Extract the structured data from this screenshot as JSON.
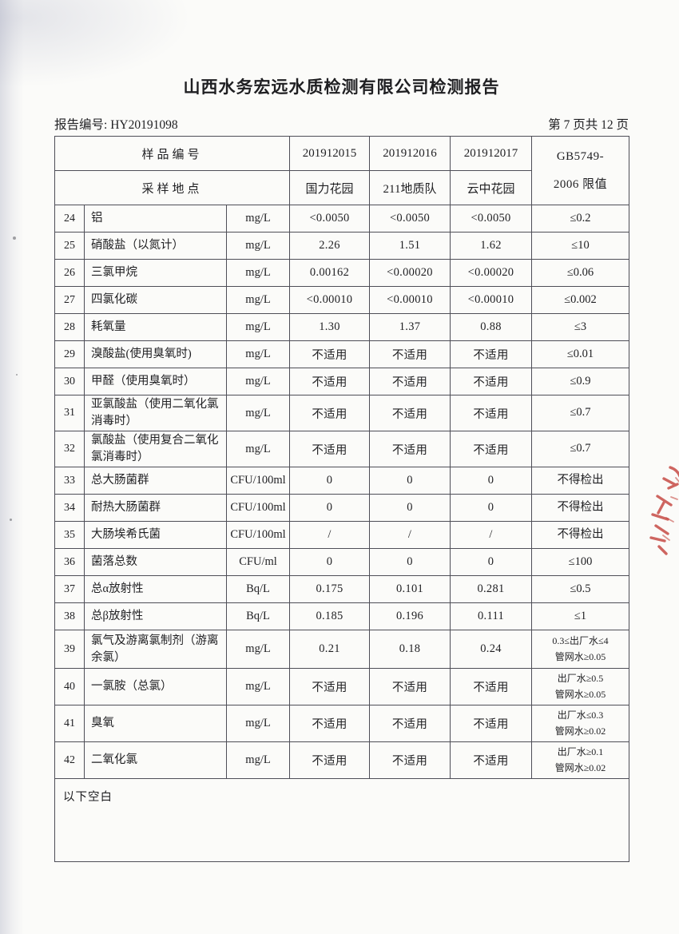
{
  "page": {
    "title": "山西水务宏远水质检测有限公司检测报告",
    "report_no_label": "报告编号:",
    "report_no": "HY20191098",
    "page_indicator": "第 7 页共 12 页"
  },
  "table": {
    "header": {
      "row1_label": "样品编号",
      "row2_label": "采样地点",
      "sample_ids": [
        "201912015",
        "201912016",
        "201912017"
      ],
      "locations": [
        "国力花园",
        "211地质队",
        "云中花园"
      ],
      "limit_label": "GB5749-\n2006 限值"
    },
    "rows": [
      {
        "no": "24",
        "name": "铝",
        "unit": "mg/L",
        "v1": "<0.0050",
        "v2": "<0.0050",
        "v3": "<0.0050",
        "limit": "≤0.2"
      },
      {
        "no": "25",
        "name": "硝酸盐（以氮计）",
        "unit": "mg/L",
        "v1": "2.26",
        "v2": "1.51",
        "v3": "1.62",
        "limit": "≤10"
      },
      {
        "no": "26",
        "name": "三氯甲烷",
        "unit": "mg/L",
        "v1": "0.00162",
        "v2": "<0.00020",
        "v3": "<0.00020",
        "limit": "≤0.06"
      },
      {
        "no": "27",
        "name": "四氯化碳",
        "unit": "mg/L",
        "v1": "<0.00010",
        "v2": "<0.00010",
        "v3": "<0.00010",
        "limit": "≤0.002"
      },
      {
        "no": "28",
        "name": "耗氧量",
        "unit": "mg/L",
        "v1": "1.30",
        "v2": "1.37",
        "v3": "0.88",
        "limit": "≤3"
      },
      {
        "no": "29",
        "name": "溴酸盐(使用臭氧时)",
        "unit": "mg/L",
        "v1": "不适用",
        "v2": "不适用",
        "v3": "不适用",
        "limit": "≤0.01"
      },
      {
        "no": "30",
        "name": "甲醛（使用臭氧时）",
        "unit": "mg/L",
        "v1": "不适用",
        "v2": "不适用",
        "v3": "不适用",
        "limit": "≤0.9"
      },
      {
        "no": "31",
        "name": "亚氯酸盐（使用二氧化氯消毒时）",
        "unit": "mg/L",
        "v1": "不适用",
        "v2": "不适用",
        "v3": "不适用",
        "limit": "≤0.7"
      },
      {
        "no": "32",
        "name": "氯酸盐（使用复合二氧化氯消毒时）",
        "unit": "mg/L",
        "v1": "不适用",
        "v2": "不适用",
        "v3": "不适用",
        "limit": "≤0.7"
      },
      {
        "no": "33",
        "name": "总大肠菌群",
        "unit": "CFU/100ml",
        "v1": "0",
        "v2": "0",
        "v3": "0",
        "limit": "不得检出"
      },
      {
        "no": "34",
        "name": "耐热大肠菌群",
        "unit": "CFU/100ml",
        "v1": "0",
        "v2": "0",
        "v3": "0",
        "limit": "不得检出"
      },
      {
        "no": "35",
        "name": "大肠埃希氏菌",
        "unit": "CFU/100ml",
        "v1": "/",
        "v2": "/",
        "v3": "/",
        "limit": "不得检出"
      },
      {
        "no": "36",
        "name": "菌落总数",
        "unit": "CFU/ml",
        "v1": "0",
        "v2": "0",
        "v3": "0",
        "limit": "≤100"
      },
      {
        "no": "37",
        "name": "总α放射性",
        "unit": "Bq/L",
        "v1": "0.175",
        "v2": "0.101",
        "v3": "0.281",
        "limit": "≤0.5"
      },
      {
        "no": "38",
        "name": "总β放射性",
        "unit": "Bq/L",
        "v1": "0.185",
        "v2": "0.196",
        "v3": "0.111",
        "limit": "≤1"
      },
      {
        "no": "39",
        "name": "氯气及游离氯制剂（游离余氯）",
        "unit": "mg/L",
        "v1": "0.21",
        "v2": "0.18",
        "v3": "0.24",
        "limit": "0.3≤出厂水≤4\n管网水≥0.05"
      },
      {
        "no": "40",
        "name": "一氯胺（总氯）",
        "unit": "mg/L",
        "v1": "不适用",
        "v2": "不适用",
        "v3": "不适用",
        "limit": "出厂水≥0.5\n管网水≥0.05"
      },
      {
        "no": "41",
        "name": "臭氧",
        "unit": "mg/L",
        "v1": "不适用",
        "v2": "不适用",
        "v3": "不适用",
        "limit": "出厂水≤0.3\n管网水≥0.02"
      },
      {
        "no": "42",
        "name": "二氧化氯",
        "unit": "mg/L",
        "v1": "不适用",
        "v2": "不适用",
        "v3": "不适用",
        "limit": "出厂水≥0.1\n管网水≥0.02"
      }
    ],
    "footer_note": "以下空白"
  },
  "colors": {
    "stamp_red": "#c4403a",
    "border": "#4e4e57",
    "text": "#1f1f22"
  }
}
